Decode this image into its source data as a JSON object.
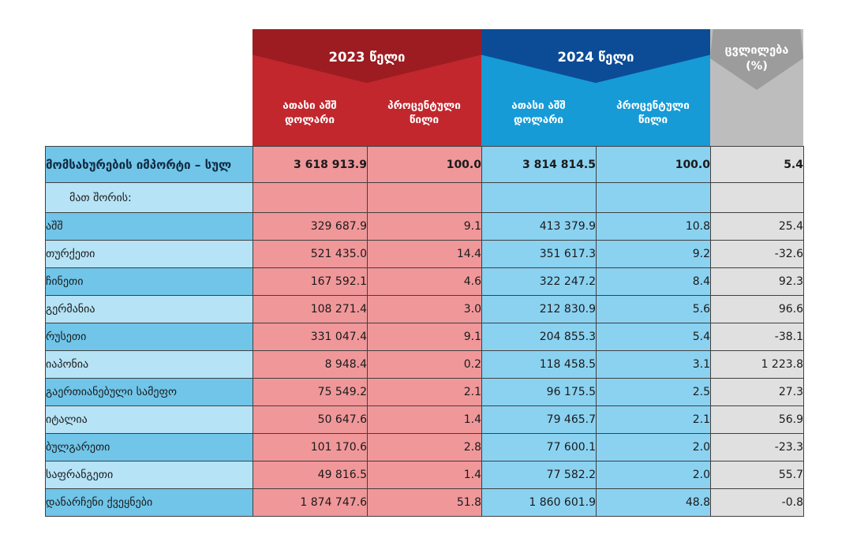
{
  "colors": {
    "red_banner": "#9c1c21",
    "red_header": "#c2272d",
    "red_cell": "#f0979a",
    "blue_banner": "#0c4c97",
    "blue_header": "#169bd7",
    "blue_cell": "#8bd2f1",
    "gray_banner": "#9c9c9c",
    "gray_header": "#bdbdbd",
    "gray_cell": "#e0e0e0",
    "label_cell_dark": "#70c5e9",
    "label_cell_light": "#b6e3f6",
    "grid_border": "#404040"
  },
  "chart_data": {
    "type": "table",
    "header": {
      "groups": [
        {
          "label": "2023 წელი",
          "columns": [
            "ათასი აშშ დოლარი",
            "პროცენტული წილი"
          ]
        },
        {
          "label": "2024 წელი",
          "columns": [
            "ათასი აშშ დოლარი",
            "პროცენტული წილი"
          ]
        },
        {
          "label": "ცვლილება (%)",
          "columns": []
        }
      ]
    },
    "rows": [
      {
        "style": "total",
        "label": "მომსახურების იმპორტი – სულ",
        "values": [
          "3 618 913.9",
          "100.0",
          "3 814 814.5",
          "100.0",
          "5.4"
        ]
      },
      {
        "style": "section",
        "label": "მათ შორის:",
        "values": [
          "",
          "",
          "",
          "",
          ""
        ]
      },
      {
        "style": "data",
        "label": "აშშ",
        "values": [
          "329 687.9",
          "9.1",
          "413 379.9",
          "10.8",
          "25.4"
        ]
      },
      {
        "style": "data",
        "label": "თურქეთი",
        "values": [
          "521 435.0",
          "14.4",
          "351 617.3",
          "9.2",
          "-32.6"
        ]
      },
      {
        "style": "data",
        "label": "ჩინეთი",
        "values": [
          "167 592.1",
          "4.6",
          "322 247.2",
          "8.4",
          "92.3"
        ]
      },
      {
        "style": "data",
        "label": "გერმანია",
        "values": [
          "108 271.4",
          "3.0",
          "212 830.9",
          "5.6",
          "96.6"
        ]
      },
      {
        "style": "data",
        "label": "რუსეთი",
        "values": [
          "331 047.4",
          "9.1",
          "204 855.3",
          "5.4",
          "-38.1"
        ]
      },
      {
        "style": "data",
        "label": "იაპონია",
        "values": [
          "8 948.4",
          "0.2",
          "118 458.5",
          "3.1",
          "1 223.8"
        ]
      },
      {
        "style": "data",
        "label": "გაერთიანებული სამეფო",
        "values": [
          "75 549.2",
          "2.1",
          "96 175.5",
          "2.5",
          "27.3"
        ]
      },
      {
        "style": "data",
        "label": "იტალია",
        "values": [
          "50 647.6",
          "1.4",
          "79 465.7",
          "2.1",
          "56.9"
        ]
      },
      {
        "style": "data",
        "label": "ბულგარეთი",
        "values": [
          "101 170.6",
          "2.8",
          "77 600.1",
          "2.0",
          "-23.3"
        ]
      },
      {
        "style": "data",
        "label": "საფრანგეთი",
        "values": [
          "49 816.5",
          "1.4",
          "77 582.2",
          "2.0",
          "55.7"
        ]
      },
      {
        "style": "data",
        "label": "დანარჩენი ქვეყნები",
        "values": [
          "1 874 747.6",
          "51.8",
          "1 860 601.9",
          "48.8",
          "-0.8"
        ]
      }
    ]
  }
}
